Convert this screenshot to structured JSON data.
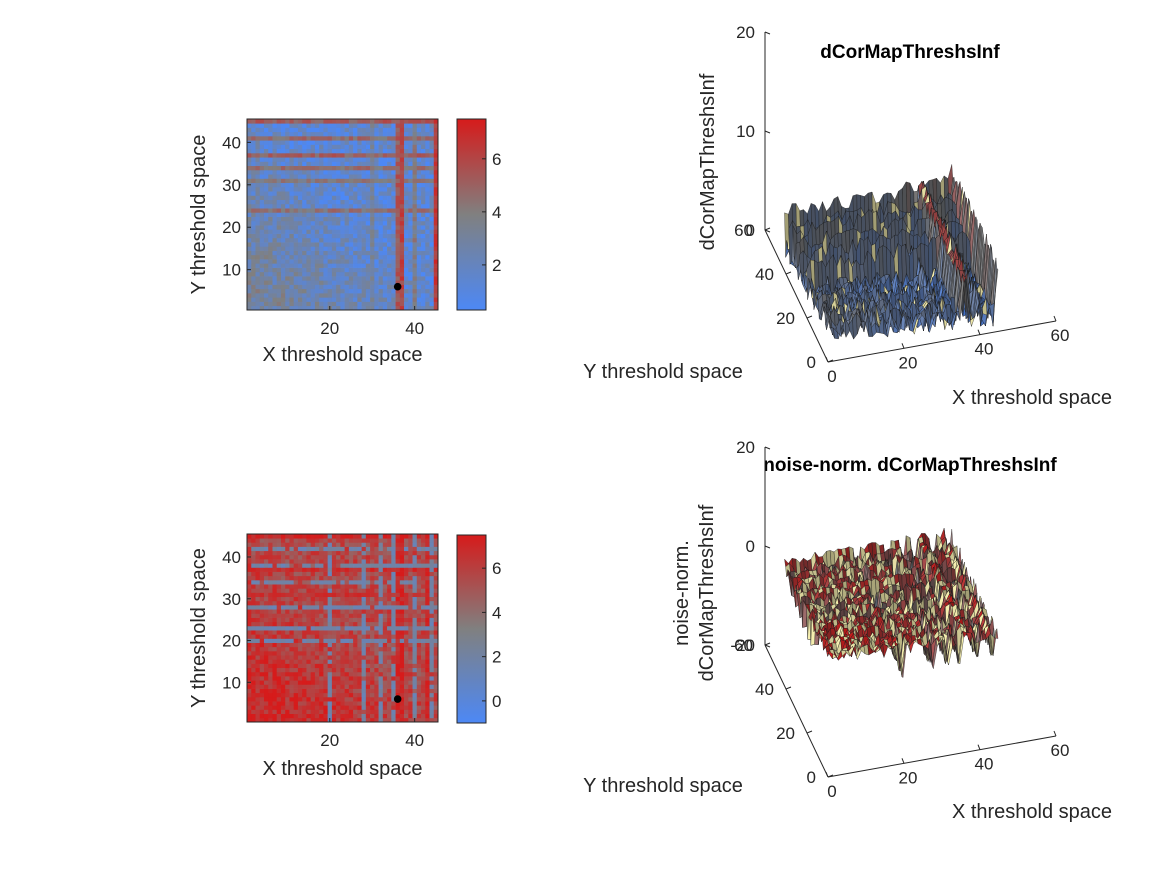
{
  "figure": {
    "background": "#ffffff",
    "colormap": {
      "low": "#4d88f5",
      "mid": "#808080",
      "high": "#d61b1b"
    }
  },
  "chart_data": [
    {
      "type": "heatmap",
      "panel": "top-left",
      "title": "",
      "xlabel": "X threshold space",
      "ylabel": "Y threshold space",
      "xlim": [
        0.5,
        45.5
      ],
      "ylim": [
        0.5,
        45.5
      ],
      "xticks": [
        20,
        40
      ],
      "yticks": [
        10,
        20,
        30,
        40
      ],
      "grid_size": 45,
      "clim": [
        0.3,
        7.5
      ],
      "colorbar_ticks": [
        2,
        4,
        6
      ],
      "colorbar_location": "right",
      "marker": {
        "x": 36,
        "y": 6,
        "color": "#000000"
      },
      "profile": {
        "base": 1.4,
        "lower_left_gain": 2.0,
        "row_bands": [
          {
            "y": 45,
            "v": 5.2
          },
          {
            "y": 41,
            "v": 4.6
          },
          {
            "y": 37,
            "v": 5.0
          },
          {
            "y": 34,
            "v": 4.4
          },
          {
            "y": 31,
            "v": 4.0
          },
          {
            "y": 24,
            "v": 4.3
          }
        ],
        "col_bands": [
          {
            "x": 36,
            "v": 5.2
          },
          {
            "x": 37,
            "v": 6.0
          },
          {
            "x": 45,
            "v": 6.4
          },
          {
            "x": 40,
            "v": 3.8
          },
          {
            "x": 30,
            "v": 3.0
          }
        ],
        "noise": 1.3
      }
    },
    {
      "type": "surface",
      "panel": "top-right",
      "title": "dCorMapThreshsInf",
      "xlabel": "X threshold space",
      "ylabel": "Y threshold space",
      "zlabel": [
        "dCorMapThreshsInf"
      ],
      "xlim": [
        0,
        60
      ],
      "ylim": [
        0,
        60
      ],
      "zlim": [
        0,
        20
      ],
      "xticks": [
        0,
        20,
        40,
        60
      ],
      "yticks": [
        0,
        20,
        40,
        60
      ],
      "zticks": [
        0,
        10,
        20
      ],
      "grid_size": 45,
      "z_range": [
        0,
        7.5
      ],
      "clim": [
        0.3,
        7.5
      ],
      "source": "top-left heatmap"
    },
    {
      "type": "heatmap",
      "panel": "bottom-left",
      "title": "",
      "xlabel": "X threshold space",
      "ylabel": "Y threshold space",
      "xlim": [
        0.5,
        45.5
      ],
      "ylim": [
        0.5,
        45.5
      ],
      "xticks": [
        20,
        40
      ],
      "yticks": [
        10,
        20,
        30,
        40
      ],
      "grid_size": 45,
      "clim": [
        -1,
        7.5
      ],
      "colorbar_ticks": [
        0,
        2,
        4,
        6
      ],
      "colorbar_location": "right",
      "marker": {
        "x": 36,
        "y": 6,
        "color": "#000000"
      },
      "profile": {
        "base": 5.6,
        "lower_left_gain": 1.6,
        "row_bands": [
          {
            "y": 45,
            "v": 7.0
          },
          {
            "y": 37,
            "v": 6.6
          },
          {
            "y": 31,
            "v": 6.4
          }
        ],
        "col_bands": [
          {
            "x": 36,
            "v": 6.8
          },
          {
            "x": 37,
            "v": 7.2
          },
          {
            "x": 43,
            "v": 6.8
          }
        ],
        "blue_rows": [
          42,
          38,
          34,
          28,
          23,
          20
        ],
        "blue_cols": [
          20,
          28,
          32,
          35,
          40,
          44
        ],
        "blue_value": 1.8,
        "noise": 1.2
      }
    },
    {
      "type": "surface",
      "panel": "bottom-right",
      "title": "noise-norm. dCorMapThreshsInf",
      "xlabel": "X threshold space",
      "ylabel": "Y threshold space",
      "zlabel": [
        "noise-norm.",
        "dCorMapThreshsInf"
      ],
      "xlim": [
        0,
        60
      ],
      "ylim": [
        0,
        60
      ],
      "zlim": [
        -20,
        20
      ],
      "xticks": [
        0,
        20,
        40,
        60
      ],
      "yticks": [
        0,
        20,
        40,
        60
      ],
      "zticks": [
        -20,
        0,
        20
      ],
      "grid_size": 45,
      "z_range": [
        -6,
        4
      ],
      "clim": [
        -1,
        7.5
      ],
      "source": "bottom-left heatmap"
    }
  ]
}
